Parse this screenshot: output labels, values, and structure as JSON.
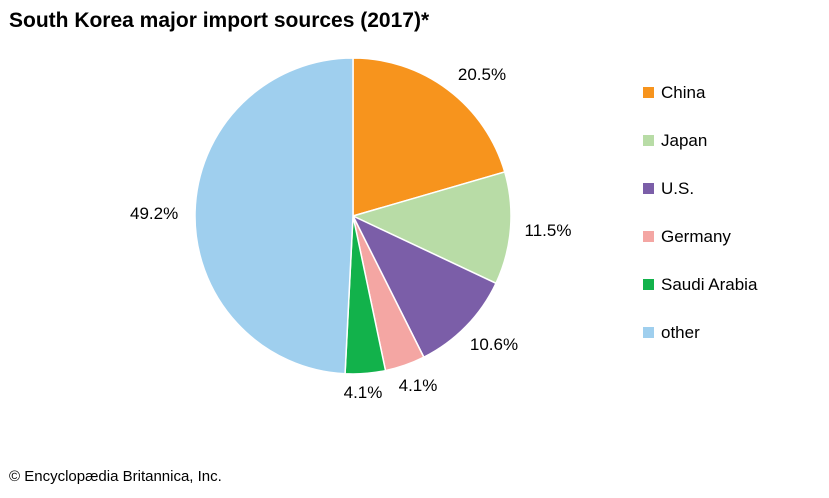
{
  "title": "South Korea major import sources (2017)*",
  "credit": "© Encyclopædia Britannica, Inc.",
  "chart_data": {
    "type": "pie",
    "title": "South Korea major import sources (2017)*",
    "legend_position": "right",
    "slices": [
      {
        "label": "China",
        "value": 20.5,
        "value_label": "20.5%",
        "color": "#f7941d"
      },
      {
        "label": "Japan",
        "value": 11.5,
        "value_label": "11.5%",
        "color": "#b8dca6"
      },
      {
        "label": "U.S.",
        "value": 10.6,
        "value_label": "10.6%",
        "color": "#7b5ea8"
      },
      {
        "label": "Germany",
        "value": 4.1,
        "value_label": "4.1%",
        "color": "#f4a6a3"
      },
      {
        "label": "Saudi Arabia",
        "value": 4.1,
        "value_label": "4.1%",
        "color": "#12b24b"
      },
      {
        "label": "other",
        "value": 49.2,
        "value_label": "49.2%",
        "color": "#9fcfee"
      }
    ]
  }
}
